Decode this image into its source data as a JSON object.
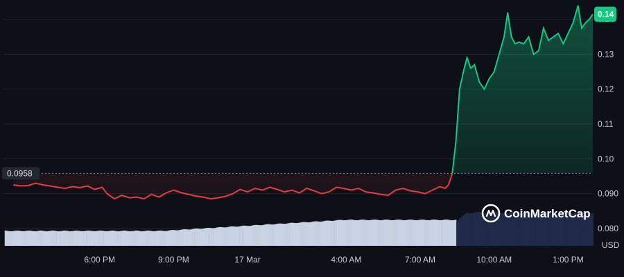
{
  "chart_data": {
    "type": "line",
    "unit": "USD",
    "brand": "CoinMarketCap",
    "baseline": {
      "value": 0.0958,
      "label": "0.0958"
    },
    "last_price": {
      "value": 0.1415,
      "label": "0.14"
    },
    "ylim": [
      0.075,
      0.144
    ],
    "y_ticks": [
      {
        "value": 0.08,
        "label": "0.080"
      },
      {
        "value": 0.09,
        "label": "0.090"
      },
      {
        "value": 0.1,
        "label": "0.10"
      },
      {
        "value": 0.11,
        "label": "0.11"
      },
      {
        "value": 0.12,
        "label": "0.12"
      },
      {
        "value": 0.13,
        "label": "0.13"
      },
      {
        "value": 0.14,
        "label": "0.14"
      }
    ],
    "x_ticks": [
      {
        "t": 18,
        "label": "6:00 PM"
      },
      {
        "t": 21,
        "label": "9:00 PM"
      },
      {
        "t": 24,
        "label": "17 Mar"
      },
      {
        "t": 28,
        "label": "4:00 AM"
      },
      {
        "t": 31,
        "label": "7:00 AM"
      },
      {
        "t": 34,
        "label": "10:00 AM"
      },
      {
        "t": 37,
        "label": "1:00 PM"
      }
    ],
    "x_range": [
      14.1,
      38.0
    ],
    "colors": {
      "up": "#16c784",
      "down": "#ea3943",
      "volume_before": "#c9d3e3",
      "volume_after": "#1f2a48"
    },
    "series": [
      {
        "x": [
          14.5,
          14.8,
          15.1,
          15.4,
          15.7,
          16.0,
          16.3,
          16.6,
          16.9,
          17.2,
          17.5,
          17.8,
          18.1,
          18.3,
          18.6,
          18.9,
          19.2,
          19.5,
          19.8,
          20.1,
          20.4,
          20.7,
          21.0,
          21.3,
          21.6,
          21.9,
          22.2,
          22.5,
          22.8,
          23.1,
          23.4,
          23.7,
          24.0,
          24.3,
          24.6,
          24.9,
          25.2,
          25.5,
          25.8,
          26.1,
          26.4,
          26.7,
          27.0,
          27.3,
          27.6,
          27.9,
          28.2,
          28.5,
          28.8,
          29.1,
          29.4,
          29.7,
          30.0,
          30.3,
          30.6,
          30.9,
          31.2,
          31.5,
          31.8,
          32.0,
          32.15,
          32.3,
          32.45,
          32.6,
          32.75,
          32.9,
          33.05,
          33.2,
          33.4,
          33.6,
          33.8,
          34.0,
          34.2,
          34.4,
          34.55,
          34.7,
          34.85,
          35.0,
          35.2,
          35.4,
          35.6,
          35.8,
          36.0,
          36.2,
          36.4,
          36.6,
          36.8,
          37.0,
          37.2,
          37.4,
          37.55,
          37.7,
          37.85,
          38.0
        ],
        "y": [
          0.0925,
          0.0922,
          0.0923,
          0.093,
          0.0925,
          0.0922,
          0.0918,
          0.0915,
          0.092,
          0.0917,
          0.0922,
          0.0912,
          0.0918,
          0.09,
          0.0885,
          0.0895,
          0.0888,
          0.089,
          0.0885,
          0.0898,
          0.089,
          0.0902,
          0.091,
          0.0903,
          0.0898,
          0.0893,
          0.089,
          0.0885,
          0.0888,
          0.0892,
          0.09,
          0.0912,
          0.0905,
          0.0915,
          0.091,
          0.0918,
          0.0912,
          0.0905,
          0.091,
          0.0902,
          0.0915,
          0.0908,
          0.09,
          0.0905,
          0.0918,
          0.0915,
          0.091,
          0.0915,
          0.0905,
          0.0902,
          0.0898,
          0.0895,
          0.091,
          0.0915,
          0.0908,
          0.0905,
          0.09,
          0.091,
          0.092,
          0.0915,
          0.0925,
          0.0958,
          0.105,
          0.12,
          0.125,
          0.129,
          0.126,
          0.127,
          0.122,
          0.12,
          0.123,
          0.125,
          0.13,
          0.135,
          0.142,
          0.135,
          0.133,
          0.1335,
          0.133,
          0.135,
          0.13,
          0.131,
          0.1375,
          0.134,
          0.135,
          0.136,
          0.133,
          0.136,
          0.139,
          0.144,
          0.1375,
          0.139,
          0.14,
          0.1415
        ]
      }
    ],
    "volume": {
      "x_split": 32.45,
      "before_level": 0.45,
      "before_level_end": 0.78,
      "after_level": 1.0
    }
  }
}
